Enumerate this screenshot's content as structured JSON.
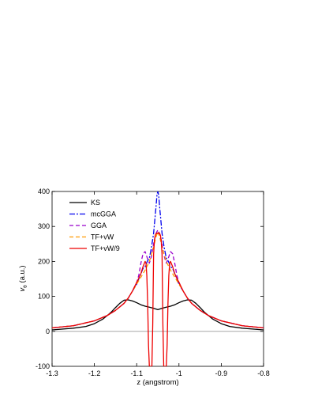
{
  "chart_data": {
    "type": "line",
    "xlabel": "z (angstrom)",
    "ylabel": "v",
    "ylabel_subscript": "θ",
    "ylabel_unit": "(a.u.)",
    "xlim": [
      -1.3,
      -0.8
    ],
    "ylim": [
      -100,
      400
    ],
    "x_ticks": [
      -1.3,
      -1.2,
      -1.1,
      -1,
      -0.9,
      -0.8
    ],
    "x_tick_labels": [
      "-1.3",
      "-1.2",
      "-1.1",
      "-1",
      "-0.9",
      "-0.8"
    ],
    "y_ticks": [
      -100,
      0,
      100,
      200,
      300,
      400
    ],
    "y_tick_labels": [
      "-100",
      "0",
      "100",
      "200",
      "300",
      "400"
    ],
    "zero_line": true,
    "grid": false,
    "legend_position": "top-left",
    "series": [
      {
        "name": "KS",
        "color": "#000000",
        "dash": "solid",
        "x": [
          -1.3,
          -1.25,
          -1.22,
          -1.2,
          -1.18,
          -1.16,
          -1.15,
          -1.14,
          -1.13,
          -1.12,
          -1.11,
          -1.1,
          -1.09,
          -1.08,
          -1.07,
          -1.06,
          -1.055,
          -1.05,
          -1.045,
          -1.04,
          -1.03,
          -1.02,
          -1.01,
          -1.0,
          -0.99,
          -0.98,
          -0.97,
          -0.96,
          -0.95,
          -0.94,
          -0.92,
          -0.9,
          -0.88,
          -0.85,
          -0.8
        ],
        "y": [
          4,
          9,
          14,
          22,
          35,
          55,
          68,
          80,
          89,
          90,
          87,
          82,
          76,
          72,
          69,
          66,
          64,
          62,
          64,
          66,
          69,
          72,
          76,
          82,
          87,
          90,
          89,
          80,
          68,
          55,
          35,
          22,
          14,
          9,
          4
        ]
      },
      {
        "name": "mcGGA",
        "color": "#0000ee",
        "dash": "dashdot",
        "x": [
          -1.3,
          -1.25,
          -1.2,
          -1.17,
          -1.15,
          -1.13,
          -1.12,
          -1.11,
          -1.1,
          -1.09,
          -1.085,
          -1.08,
          -1.075,
          -1.07,
          -1.065,
          -1.06,
          -1.057,
          -1.054,
          -1.052,
          -1.05,
          -1.048,
          -1.046,
          -1.043,
          -1.04,
          -1.035,
          -1.03,
          -1.025,
          -1.02,
          -1.015,
          -1.01,
          -1.0,
          -0.99,
          -0.98,
          -0.97,
          -0.95,
          -0.93,
          -0.9,
          -0.85,
          -0.8
        ],
        "y": [
          10,
          16,
          30,
          45,
          60,
          80,
          95,
          115,
          135,
          165,
          180,
          185,
          200,
          210,
          240,
          280,
          320,
          360,
          390,
          400,
          390,
          360,
          320,
          280,
          240,
          210,
          200,
          185,
          180,
          165,
          135,
          115,
          95,
          80,
          60,
          45,
          30,
          16,
          10
        ]
      },
      {
        "name": "GGA",
        "color": "#9900cc",
        "dash": "dashed",
        "x": [
          -1.3,
          -1.25,
          -1.2,
          -1.17,
          -1.15,
          -1.13,
          -1.12,
          -1.11,
          -1.1,
          -1.095,
          -1.09,
          -1.085,
          -1.08,
          -1.075,
          -1.07,
          -1.065,
          -1.06,
          -1.055,
          -1.05,
          -1.045,
          -1.04,
          -1.035,
          -1.03,
          -1.025,
          -1.02,
          -1.015,
          -1.01,
          -1.005,
          -1.0,
          -0.99,
          -0.98,
          -0.97,
          -0.95,
          -0.93,
          -0.9,
          -0.85,
          -0.8
        ],
        "y": [
          10,
          16,
          30,
          45,
          60,
          80,
          95,
          115,
          140,
          160,
          195,
          222,
          228,
          210,
          195,
          215,
          250,
          278,
          290,
          278,
          250,
          215,
          195,
          210,
          228,
          222,
          195,
          160,
          140,
          115,
          95,
          80,
          60,
          45,
          30,
          16,
          10
        ]
      },
      {
        "name": "TF+vW",
        "color": "#ff9900",
        "dash": "dashed",
        "x": [
          -1.3,
          -1.25,
          -1.2,
          -1.17,
          -1.15,
          -1.13,
          -1.12,
          -1.11,
          -1.1,
          -1.09,
          -1.08,
          -1.07,
          -1.06,
          -1.055,
          -1.05,
          -1.045,
          -1.04,
          -1.03,
          -1.02,
          -1.01,
          -1.0,
          -0.99,
          -0.98,
          -0.97,
          -0.95,
          -0.93,
          -0.9,
          -0.85,
          -0.8
        ],
        "y": [
          10,
          16,
          30,
          45,
          60,
          80,
          95,
          115,
          135,
          155,
          175,
          200,
          240,
          268,
          285,
          268,
          240,
          200,
          175,
          155,
          135,
          115,
          95,
          80,
          60,
          45,
          30,
          16,
          10
        ]
      },
      {
        "name": "TF+vW/9",
        "color": "#ee0000",
        "dash": "solid",
        "x": [
          -1.3,
          -1.25,
          -1.2,
          -1.17,
          -1.15,
          -1.13,
          -1.12,
          -1.11,
          -1.1,
          -1.095,
          -1.09,
          -1.085,
          -1.08,
          -1.078,
          -1.076,
          -1.074,
          -1.072,
          -1.07,
          -1.068,
          -1.066,
          -1.064,
          -1.062,
          -1.06,
          -1.058,
          -1.056,
          -1.054,
          -1.052,
          -1.05,
          -1.048,
          -1.046,
          -1.044,
          -1.042,
          -1.04,
          -1.038,
          -1.036,
          -1.034,
          -1.032,
          -1.03,
          -1.028,
          -1.026,
          -1.024,
          -1.022,
          -1.02,
          -1.015,
          -1.01,
          -1.005,
          -1.0,
          -0.99,
          -0.98,
          -0.97,
          -0.95,
          -0.93,
          -0.9,
          -0.85,
          -0.8
        ],
        "y": [
          10,
          16,
          30,
          45,
          60,
          80,
          95,
          115,
          140,
          152,
          165,
          185,
          200,
          195,
          160,
          80,
          -40,
          -100,
          -100,
          -100,
          -100,
          20,
          220,
          260,
          275,
          280,
          280,
          280,
          280,
          280,
          275,
          260,
          220,
          20,
          -100,
          -100,
          -100,
          -100,
          -40,
          80,
          160,
          195,
          200,
          185,
          165,
          152,
          140,
          115,
          95,
          80,
          60,
          45,
          30,
          16,
          10
        ]
      }
    ]
  }
}
